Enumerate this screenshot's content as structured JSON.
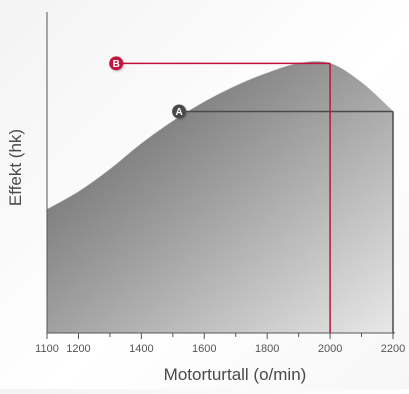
{
  "chart_data": {
    "type": "area",
    "xlabel": "Motorturtall (o/min)",
    "ylabel": "Effekt (hk)",
    "xlim": [
      1100,
      2200
    ],
    "ylim": [
      0,
      100
    ],
    "x_ticks": [
      1100,
      1200,
      1400,
      1600,
      1800,
      2000,
      2200
    ],
    "y_ticks_shown": false,
    "grid": false,
    "legend": "none",
    "series": [
      {
        "x": [
          1100,
          1200,
          1300,
          1400,
          1500,
          1600,
          1700,
          1800,
          1900,
          2000,
          2100,
          2200
        ],
        "values": [
          38.5,
          44,
          51,
          59,
          66,
          72,
          77,
          81,
          84,
          84,
          78,
          69
        ]
      }
    ],
    "markers": [
      {
        "label": "A",
        "x": 2200,
        "y": 69,
        "line_from_x": 1520,
        "color": "#4a4a4a"
      },
      {
        "label": "B",
        "x": 2000,
        "y": 84,
        "line_from_x": 1320,
        "color": "#c0123c"
      }
    ],
    "colors": {
      "area_dark": "#5a5a5a",
      "area_light": "#e8e8e8",
      "axis": "#555555",
      "marker_a": "#4a4a4a",
      "marker_b": "#c0123c"
    }
  }
}
